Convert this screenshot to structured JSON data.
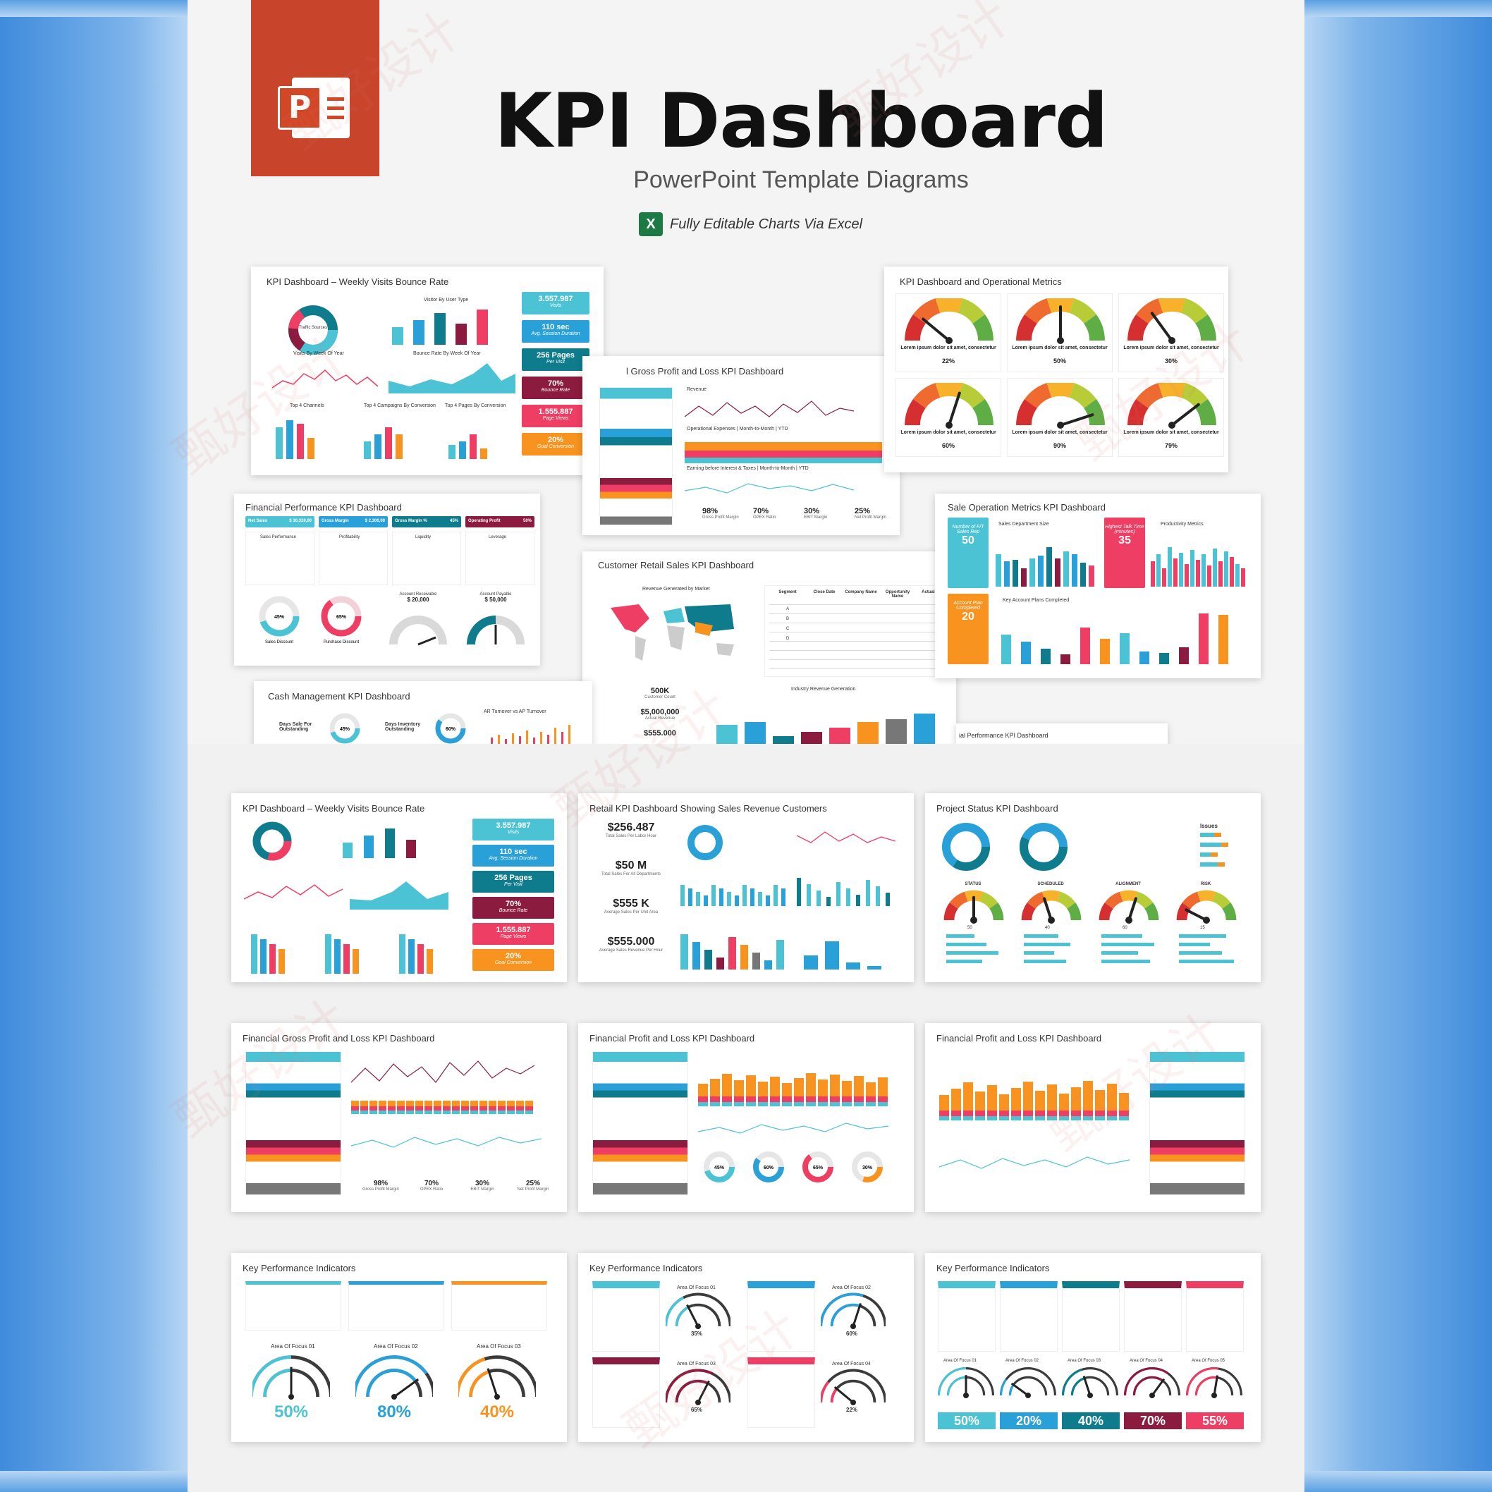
{
  "header": {
    "title": "KPI Dashboard",
    "subtitle": "PowerPoint Template Diagrams",
    "excel_note": "Fully Editable Charts Via Excel",
    "ppt_letter": "P",
    "excel_letter": "X"
  },
  "colors": {
    "teal": "#4cc3d4",
    "blue": "#2aa0d8",
    "darkteal": "#0e7c8c",
    "maroon": "#8c1c3f",
    "pink": "#ee3e63",
    "orange": "#f7931e",
    "gray": "#777777"
  },
  "upper_slides": {
    "weekly_visits": {
      "title": "KPI Dashboard – Weekly Visits Bounce Rate",
      "donut_label": "Traffic Sources",
      "visitor_chart": "Visitor By User Type",
      "visits_week": "Visits By Week Of Year",
      "bounce_week": "Bounce Rate By Week Of Year",
      "channels": "Top 4 Channels",
      "campaigns": "Top 4 Campaigns By Conversion",
      "pages": "Top 4 Pages By Conversion",
      "kpis": [
        {
          "value": "3.557.987",
          "label": "Visits"
        },
        {
          "value": "110 sec",
          "label": "Avg. Session Duration"
        },
        {
          "value": "256 Pages",
          "label": "Per Visit"
        },
        {
          "value": "70%",
          "label": "Bounce Rate"
        },
        {
          "value": "1.555.887",
          "label": "Page Views"
        },
        {
          "value": "20%",
          "label": "Goal Conversion"
        }
      ]
    },
    "operational": {
      "title": "KPI Dashboard and Operational Metrics",
      "caption": "Lorem ipsum dolor sit amet, consectetur",
      "gauges": [
        0.22,
        0.5,
        0.3,
        0.6,
        0.9,
        0.79
      ],
      "values": [
        "22%",
        "50%",
        "30%",
        "60%",
        "90%",
        "79%"
      ]
    },
    "gross_profit": {
      "title": "l Gross Profit and Loss KPI Dashboard",
      "revenue": "Revenue",
      "opex": "Operational Expenses | Month-to-Month | YTD",
      "ebit": "Earning before Interest & Taxes | Month-to-Month | YTD",
      "stats": [
        {
          "value": "98%",
          "label": "Gross Profit Margin"
        },
        {
          "value": "70%",
          "label": "OPEX Ratio"
        },
        {
          "value": "30%",
          "label": "EBIT Margin"
        },
        {
          "value": "25%",
          "label": "Net Profit Margin"
        }
      ]
    },
    "financial_perf": {
      "title": "Financial Performance KPI Dashboard",
      "headers": [
        {
          "label": "Net Sales",
          "value": "$ 30,320,00"
        },
        {
          "label": "Gross Margin",
          "value": "$ 2,300,00"
        },
        {
          "label": "Gross Margin %",
          "value": "45%"
        },
        {
          "label": "Operating Profit",
          "value": "50%"
        }
      ],
      "tables": [
        "Sales Performance",
        "Profitability",
        "Liquidity",
        "Leverage"
      ],
      "donuts": [
        {
          "value": "45%",
          "label": "Sales Discount"
        },
        {
          "value": "65%",
          "label": "Purchase Discount"
        }
      ],
      "receivable": {
        "label": "Account Receivable",
        "value": "$ 20,000"
      },
      "payable": {
        "label": "Account Payable",
        "value": "$ 50,000"
      }
    },
    "sale_ops": {
      "title": "Sale Operation Metrics KPI Dashboard",
      "dept": "Sales Department Size",
      "productivity": "Productivity Metrics",
      "key_plans": "Key Account Plans Completed",
      "fte": {
        "label": "Number of F/T Sales Rep",
        "value": "50"
      },
      "talk": {
        "label": "Highest Talk Time (minutes)",
        "value": "35"
      },
      "plans": {
        "label": "Account Plan Completed",
        "value": "20"
      }
    },
    "customer_retail": {
      "title": "Customer Retail Sales KPI Dashboard",
      "map": "Revenue Generated by Market",
      "industry": "Industry Revenue Generation",
      "table_headers": [
        "Segment",
        "Close Date",
        "Company Name",
        "Opportunity Name",
        "Actual Value"
      ],
      "segments": [
        "A",
        "B",
        "C",
        "D"
      ],
      "stats": [
        {
          "value": "500K",
          "label": "Customer Count"
        },
        {
          "value": "$5,000,000",
          "label": "Actual Revenue"
        },
        {
          "value": "$555.000",
          "label": ""
        }
      ]
    },
    "cash": {
      "title": "Cash Management KPI Dashboard",
      "items": [
        {
          "label": "Days Sale For Outstanding",
          "value": "45%"
        },
        {
          "label": "Days Inventory Outstanding",
          "value": "60%"
        }
      ],
      "turnover": "AR Turnover vs AP Turnover"
    },
    "financial_peek": "ial Performance KPI Dashboard"
  },
  "lower_slides": [
    {
      "title": "KPI Dashboard – Weekly Visits Bounce Rate"
    },
    {
      "title": "Retail KPI Dashboard Showing Sales Revenue Customers",
      "stats": [
        {
          "value": "$256.487",
          "label": "Total Sales Per Labor Hour"
        },
        {
          "value": "$50 M",
          "label": "Total Sales For All Departments"
        },
        {
          "value": "$555 K",
          "label": "Average Sales Per Unit Area"
        },
        {
          "value": "$555.000",
          "label": "Average Sales Revenue Per Hour"
        }
      ]
    },
    {
      "title": "Project Status KPI Dashboard",
      "issues": "Issues",
      "gauges": [
        {
          "label": "STATUS",
          "value": "50"
        },
        {
          "label": "SCHEDULED",
          "value": "40"
        },
        {
          "label": "ALIGNMENT",
          "value": "60"
        },
        {
          "label": "RISK",
          "value": "15"
        }
      ]
    },
    {
      "title": "Financial Gross Profit and Loss KPI Dashboard",
      "stats": [
        {
          "value": "98%",
          "label": "Gross Profit Margin"
        },
        {
          "value": "70%",
          "label": "OPEX Ratio"
        },
        {
          "value": "30%",
          "label": "EBIT Margin"
        },
        {
          "value": "25%",
          "label": "Net Profit Margin"
        }
      ]
    },
    {
      "title": "Financial Profit and Loss KPI Dashboard",
      "donuts": [
        "45%",
        "60%",
        "65%",
        "30%"
      ]
    },
    {
      "title": "Financial Profit and Loss KPI Dashboard"
    },
    {
      "title": "Key Performance Indicators",
      "focus": [
        {
          "label": "Area Of Focus 01",
          "value": "50%",
          "level": 0.5
        },
        {
          "label": "Area Of Focus 02",
          "value": "80%",
          "level": 0.8
        },
        {
          "label": "Area Of Focus 03",
          "value": "40%",
          "level": 0.4
        }
      ]
    },
    {
      "title": "Key Performance Indicators",
      "focus": [
        {
          "label": "Area Of Focus 01",
          "value": "35%",
          "level": 0.35
        },
        {
          "label": "Area Of Focus 02",
          "value": "60%",
          "level": 0.6
        },
        {
          "label": "Area Of Focus 03",
          "value": "65%",
          "level": 0.65
        },
        {
          "label": "Area Of Focus 04",
          "value": "22%",
          "level": 0.22
        }
      ]
    },
    {
      "title": "Key Performance Indicators",
      "focus": [
        {
          "label": "Area Of Focus 01",
          "value": "50%",
          "level": 0.5
        },
        {
          "label": "Area Of Focus 02",
          "value": "20%",
          "level": 0.2
        },
        {
          "label": "Area Of Focus 03",
          "value": "40%",
          "level": 0.4
        },
        {
          "label": "Area Of Focus 04",
          "value": "70%",
          "level": 0.7
        },
        {
          "label": "Area Of Focus 05",
          "value": "55%",
          "level": 0.55
        }
      ]
    }
  ]
}
